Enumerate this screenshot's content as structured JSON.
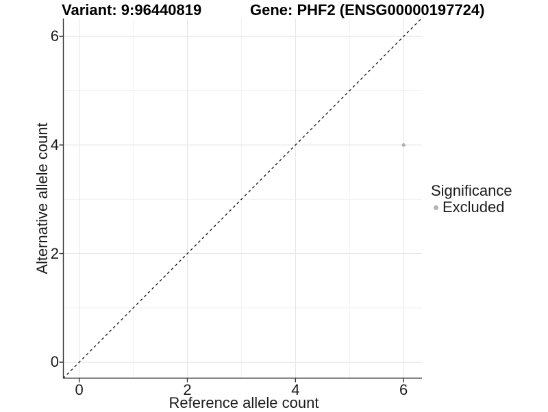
{
  "titles": {
    "variant": "Variant: 9:96440819",
    "gene": "Gene: PHF2 (ENSG00000197724)"
  },
  "chart_data": {
    "type": "scatter",
    "title_left": "Variant: 9:96440819",
    "title_right": "Gene: PHF2 (ENSG00000197724)",
    "xlabel": "Reference allele count",
    "ylabel": "Alternative allele count",
    "xlim": [
      -0.3,
      6.34
    ],
    "ylim": [
      -0.3,
      6.33
    ],
    "x_ticks": [
      0,
      2,
      4,
      6
    ],
    "y_ticks": [
      0,
      2,
      4,
      6
    ],
    "x_minor_ticks": [
      1,
      3,
      5
    ],
    "y_minor_ticks": [
      1,
      3,
      5
    ],
    "grid": true,
    "series": [
      {
        "name": "Excluded",
        "color": "#b3b3b3",
        "points": [
          {
            "x": 6,
            "y": 4
          }
        ]
      }
    ],
    "reference_line": {
      "kind": "identity",
      "equation": "y = x",
      "style": "dashed"
    },
    "legend": {
      "title": "Significance",
      "position": "right",
      "entries": [
        {
          "label": "Excluded",
          "color": "#b3b3b3"
        }
      ]
    },
    "colors": {
      "background": "#ffffff",
      "grid_major": "#e4e4e4",
      "grid_minor": "#f1f1f1",
      "axis": "#333333",
      "reference_line": "#000000",
      "point": "#b3b3b3"
    }
  }
}
